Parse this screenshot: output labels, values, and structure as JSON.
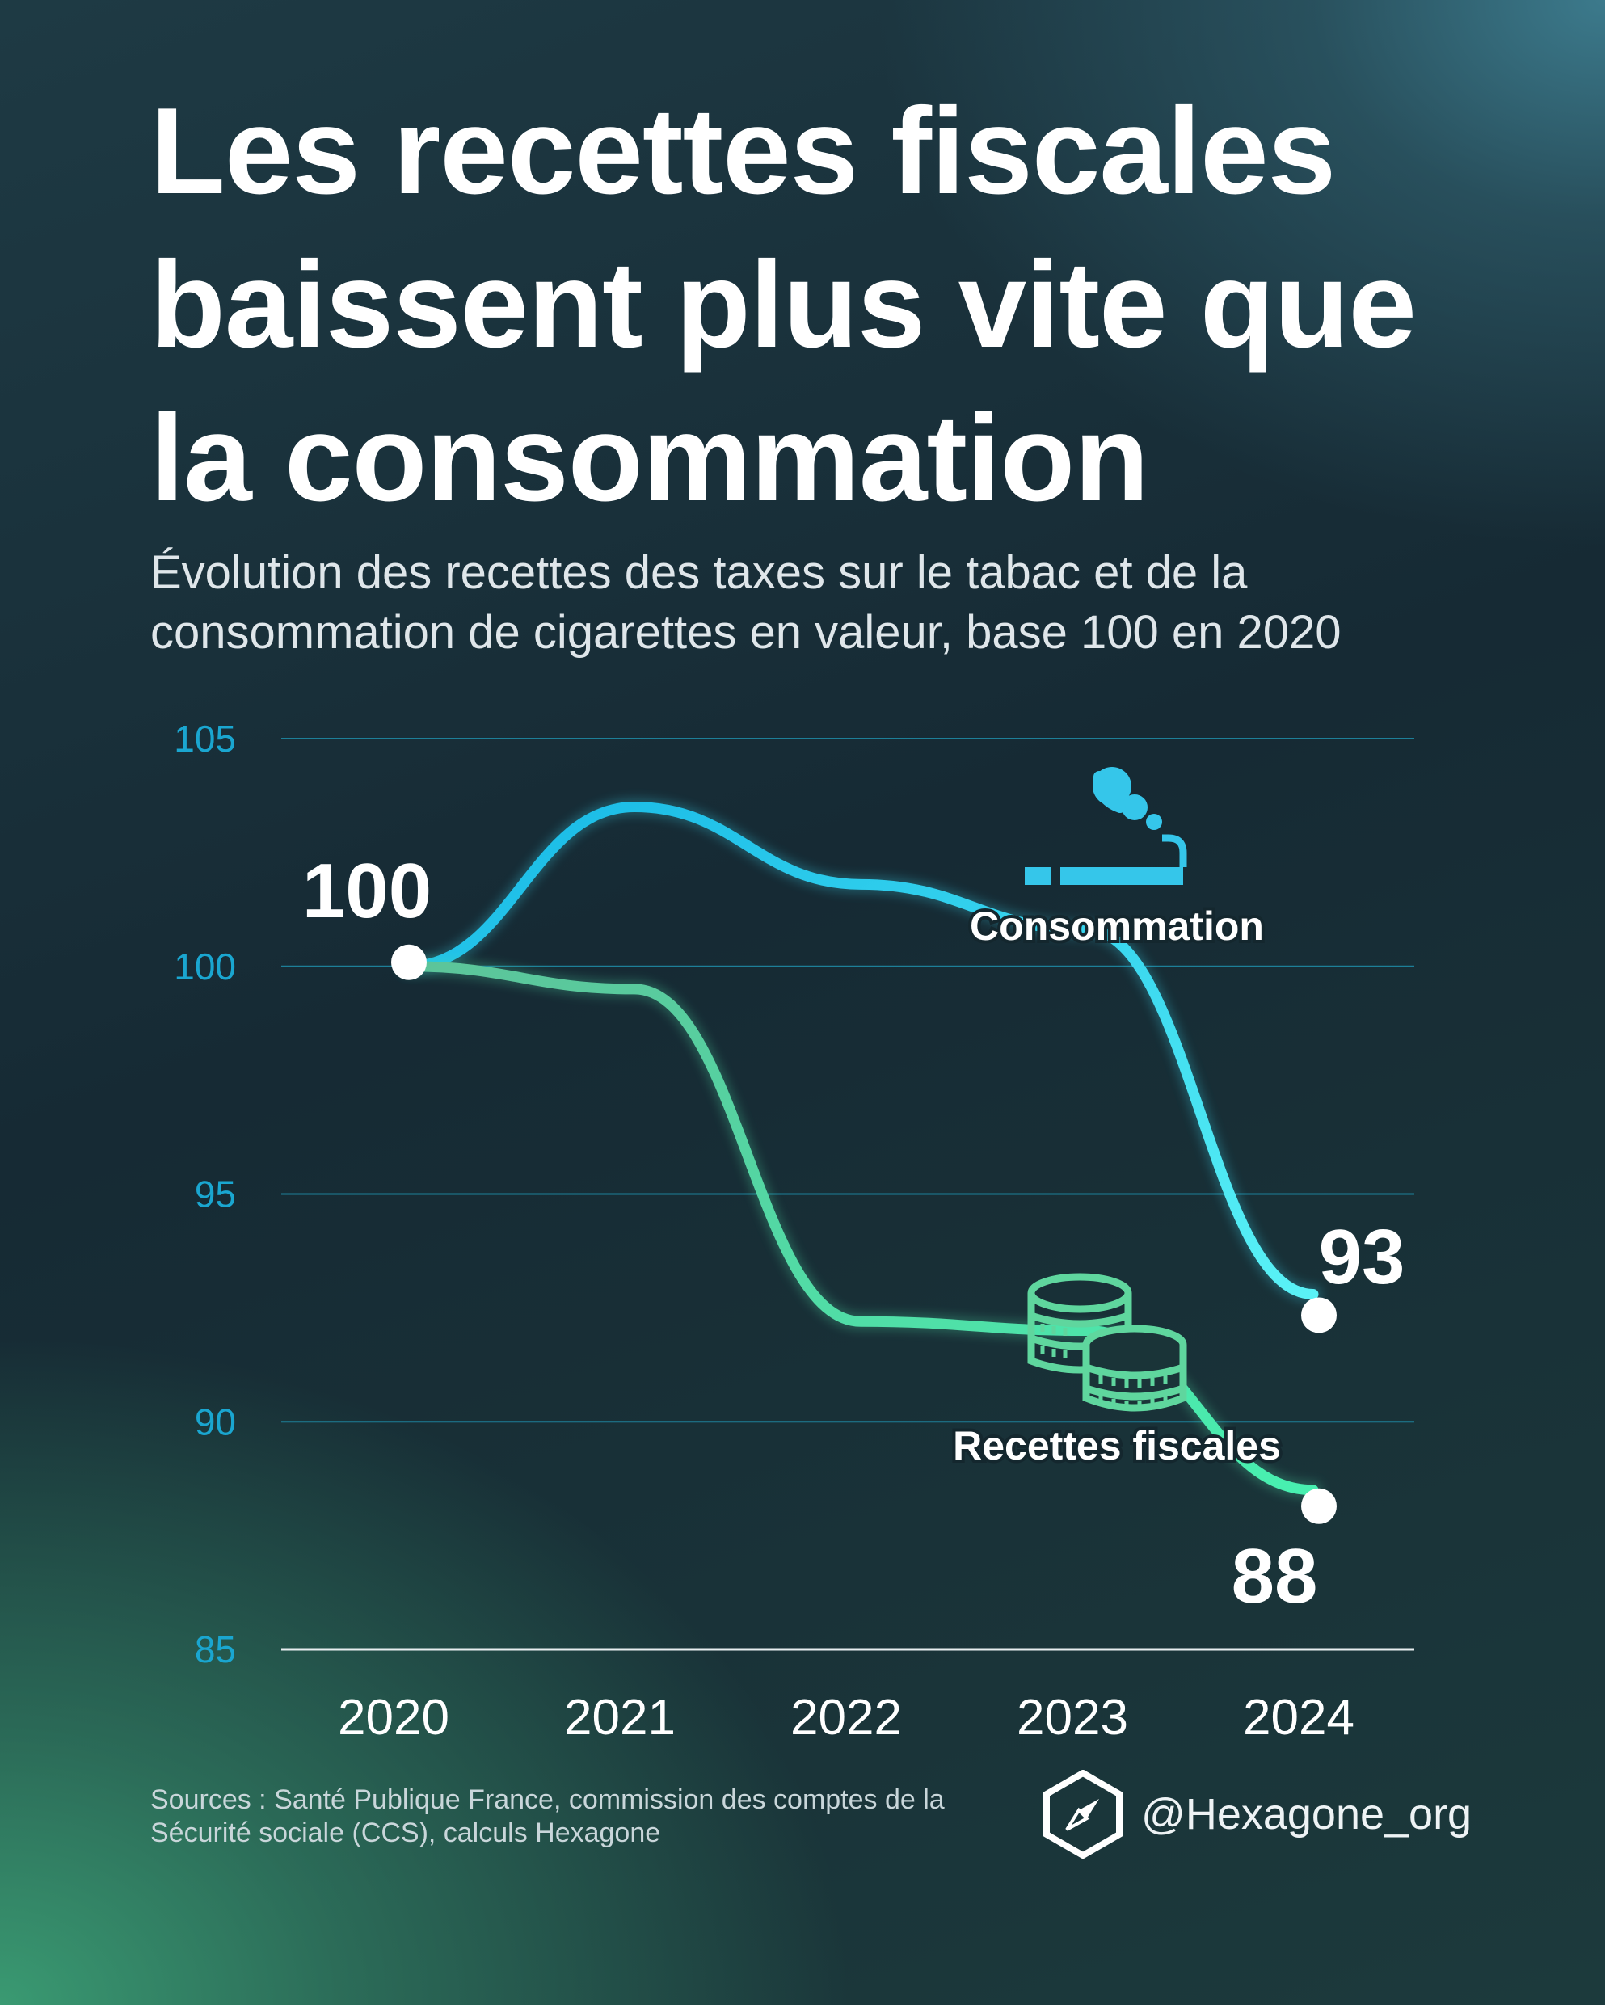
{
  "title_lines": [
    "Les recettes fiscales",
    "baissent plus vite que",
    "la consommation"
  ],
  "subtitle_lines": [
    "Évolution des recettes des taxes sur le tabac et de la",
    "consommation de cigarettes en valeur, base 100 en 2020"
  ],
  "chart_data": {
    "type": "line",
    "title": "Les recettes fiscales baissent plus vite que la consommation",
    "x": [
      "2020",
      "2021",
      "2022",
      "2023",
      "2024"
    ],
    "ylim": [
      85,
      105
    ],
    "yticks": [
      105,
      100,
      95,
      90,
      85
    ],
    "grid": true,
    "series": [
      {
        "name": "Consommation",
        "values": [
          100,
          103.5,
          101.8,
          100.8,
          92.8
        ],
        "color": "#38d8f0",
        "icon": "cigarette-icon"
      },
      {
        "name": "Recettes fiscales",
        "values": [
          100,
          99.5,
          92.2,
          92.0,
          88.5
        ],
        "color": "#4fe0a8",
        "icon": "coins-icon"
      }
    ],
    "labels": {
      "start": "100",
      "end_consommation": "93",
      "end_recettes": "88"
    }
  },
  "sources_lines": [
    "Sources : Santé Publique France, commission des comptes de la",
    "Sécurité sociale (CCS), calculs Hexagone"
  ],
  "brand": {
    "handle": "@Hexagone_org",
    "icon": "hexagon-compass-icon"
  },
  "colors": {
    "axis_text": "#1aa6d0",
    "grid": "#1d7f98",
    "consommation": "#38d8f0",
    "recettes": "#4fe0a8"
  }
}
